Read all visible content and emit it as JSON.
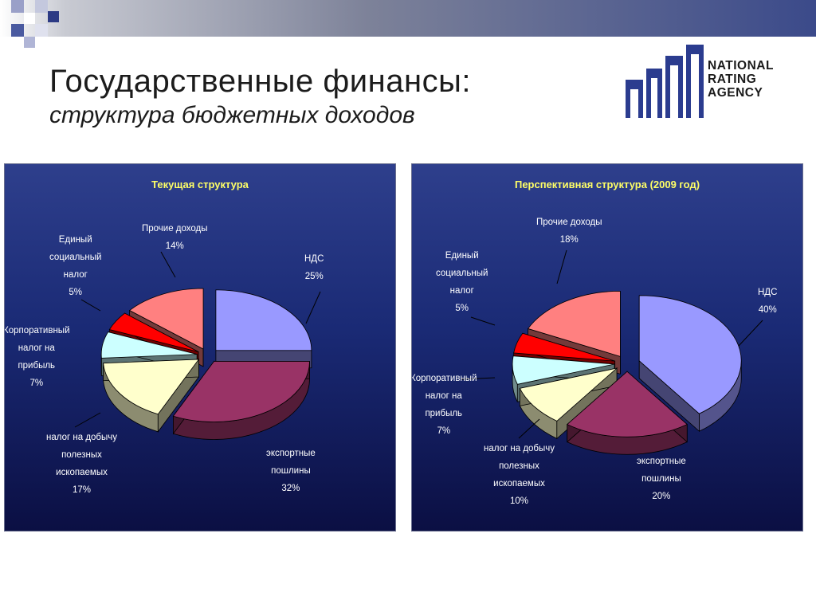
{
  "slide": {
    "title": "Государственные финансы:",
    "subtitle": "структура бюджетных доходов"
  },
  "logo": {
    "line1": "NATIONAL",
    "line2": "RATING",
    "line3": "AGENCY",
    "color": "#2b3c8f"
  },
  "chart_data": [
    {
      "type": "pie",
      "title": "Текущая структура",
      "slices": [
        {
          "name_lines": [
            "НДС"
          ],
          "value": 25,
          "label": "25%",
          "color": "#9999ff"
        },
        {
          "name_lines": [
            "экспортные",
            "пошлины"
          ],
          "value": 32,
          "label": "32%",
          "color": "#993366"
        },
        {
          "name_lines": [
            "налог на добычу",
            "полезных",
            "ископаемых"
          ],
          "value": 17,
          "label": "17%",
          "color": "#ffffcc"
        },
        {
          "name_lines": [
            "Корпоративный",
            "налог на",
            "прибыль"
          ],
          "value": 7,
          "label": "7%",
          "color": "#ccffff"
        },
        {
          "name_lines": [
            "Единый",
            "социальный",
            "налог"
          ],
          "value": 5,
          "label": "5%",
          "color": "#ff0000"
        },
        {
          "name_lines": [
            "Прочие доходы"
          ],
          "value": 14,
          "label": "14%",
          "color": "#ff8080"
        }
      ]
    },
    {
      "type": "pie",
      "title": "Перспективная структура (2009 год)",
      "slices": [
        {
          "name_lines": [
            "НДС"
          ],
          "value": 40,
          "label": "40%",
          "color": "#9999ff"
        },
        {
          "name_lines": [
            "экспортные",
            "пошлины"
          ],
          "value": 20,
          "label": "20%",
          "color": "#993366"
        },
        {
          "name_lines": [
            "налог на добычу",
            "полезных",
            "ископаемых"
          ],
          "value": 10,
          "label": "10%",
          "color": "#ffffcc"
        },
        {
          "name_lines": [
            "Корпоративный",
            "налог на",
            "прибыль"
          ],
          "value": 7,
          "label": "7%",
          "color": "#ccffff"
        },
        {
          "name_lines": [
            "Единый",
            "социальный",
            "налог"
          ],
          "value": 5,
          "label": "5%",
          "color": "#ff0000"
        },
        {
          "name_lines": [
            "Прочие доходы"
          ],
          "value": 18,
          "label": "18%",
          "color": "#ff8080"
        }
      ]
    }
  ]
}
